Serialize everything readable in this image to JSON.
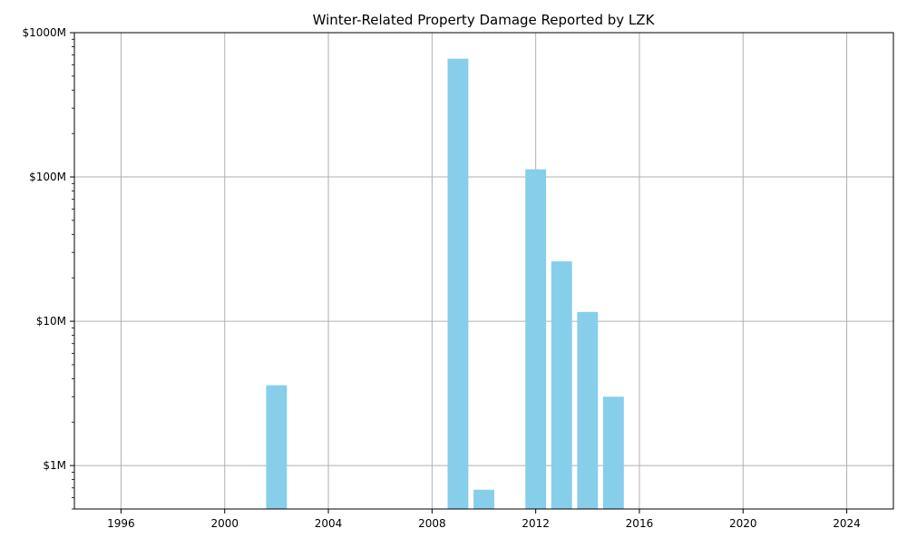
{
  "chart_data": {
    "type": "bar",
    "title": "Winter-Related Property Damage Reported by LZK",
    "xlabel": "",
    "ylabel": "",
    "y_scale": "log",
    "x": [
      2002,
      2009,
      2010,
      2012,
      2013,
      2014,
      2015
    ],
    "values": [
      3600000,
      660000000,
      680000,
      113000000,
      26000000,
      11600000,
      3000000
    ],
    "xlim": [
      1994.2,
      2025.8
    ],
    "ylim": [
      500000,
      1000000000
    ],
    "xticks": [
      1996,
      2000,
      2004,
      2008,
      2012,
      2016,
      2020,
      2024
    ],
    "xtick_labels": [
      "1996",
      "2000",
      "2004",
      "2008",
      "2012",
      "2016",
      "2020",
      "2024"
    ],
    "yticks": [
      1000000,
      10000000,
      100000000,
      1000000000
    ],
    "ytick_labels": [
      "$1M",
      "$10M",
      "$100M",
      "$1000M"
    ],
    "grid": true,
    "bar_color": "#87CEEB",
    "grid_color": "#b0b0b0"
  }
}
